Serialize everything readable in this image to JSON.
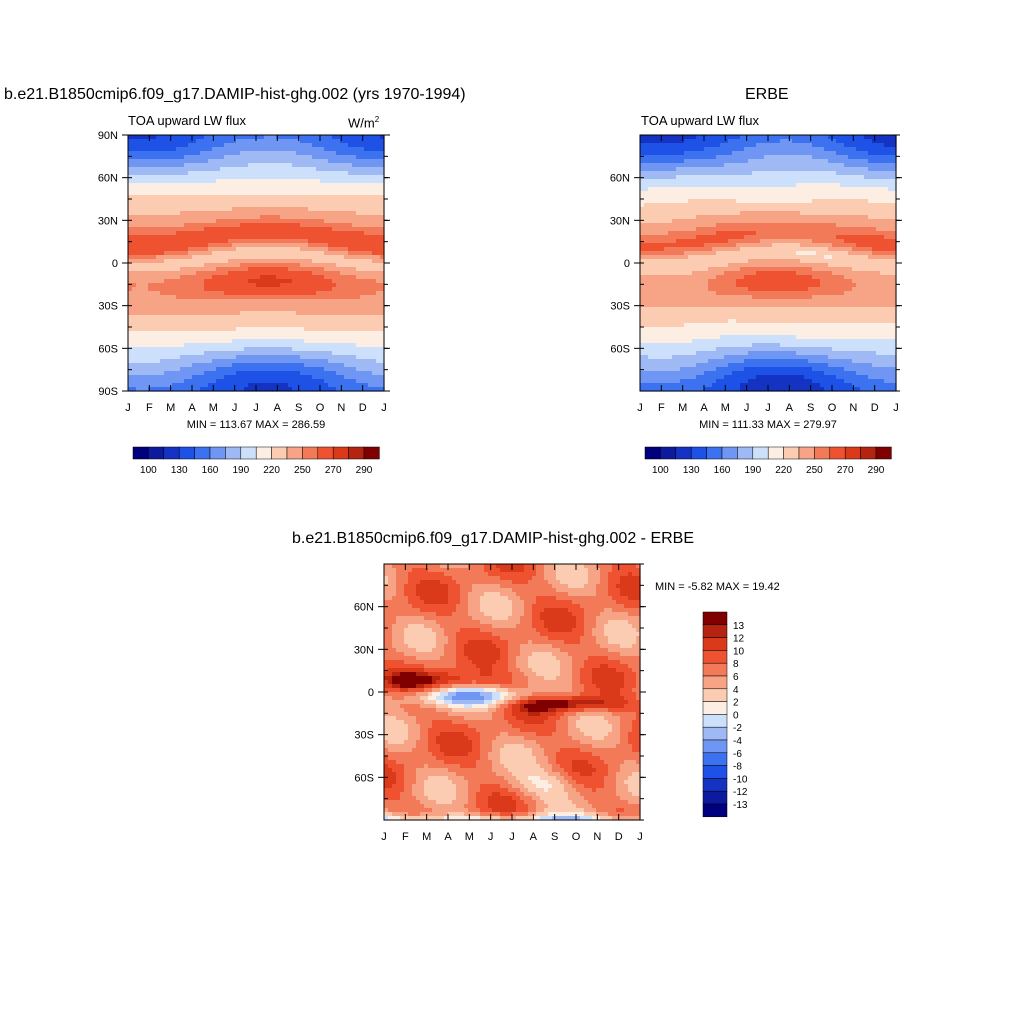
{
  "chart_data": [
    {
      "type": "heatmap",
      "title": "b.e21.B1850cmip6.f09_g17.DAMIP-hist-ghg.002 (yrs 1970-1994)",
      "subtitle": "TOA upward LW flux",
      "units": "W/m",
      "units_sup": "2",
      "x_tick_labels": [
        "J",
        "F",
        "M",
        "A",
        "M",
        "J",
        "J",
        "A",
        "S",
        "O",
        "N",
        "D",
        "J"
      ],
      "y_tick_labels": [
        "90N",
        "60N",
        "30N",
        "0",
        "30S",
        "60S",
        "90S"
      ],
      "ylim": [
        -90,
        90
      ],
      "min_max_text": "MIN = 113.67 MAX = 286.59",
      "colorbar": {
        "orientation": "horizontal",
        "labels": [
          "100",
          "130",
          "160",
          "190",
          "220",
          "250",
          "270",
          "290"
        ],
        "colors": [
          "#00007f",
          "#0c1a9e",
          "#1433c2",
          "#1e51e6",
          "#3c71f0",
          "#6f96f2",
          "#9fb9f4",
          "#cde0fb",
          "#fdeee3",
          "#fbcbb2",
          "#f7a386",
          "#f37a59",
          "#ee5230",
          "#db3a1a",
          "#b52410",
          "#800000"
        ]
      }
    },
    {
      "type": "heatmap",
      "title": "ERBE",
      "subtitle": "TOA upward LW flux",
      "x_tick_labels": [
        "J",
        "F",
        "M",
        "A",
        "M",
        "J",
        "J",
        "A",
        "S",
        "O",
        "N",
        "D",
        "J"
      ],
      "y_tick_labels": [
        "60N",
        "30N",
        "0",
        "30S",
        "60S"
      ],
      "ylim": [
        -90,
        90
      ],
      "min_max_text": "MIN = 111.33 MAX = 279.97",
      "colorbar": {
        "orientation": "horizontal",
        "labels": [
          "100",
          "130",
          "160",
          "190",
          "220",
          "250",
          "270",
          "290"
        ],
        "colors": [
          "#00007f",
          "#0c1a9e",
          "#1433c2",
          "#1e51e6",
          "#3c71f0",
          "#6f96f2",
          "#9fb9f4",
          "#cde0fb",
          "#fdeee3",
          "#fbcbb2",
          "#f7a386",
          "#f37a59",
          "#ee5230",
          "#db3a1a",
          "#b52410",
          "#800000"
        ]
      }
    },
    {
      "type": "heatmap",
      "title": "b.e21.B1850cmip6.f09_g17.DAMIP-hist-ghg.002 - ERBE",
      "x_tick_labels": [
        "J",
        "F",
        "M",
        "A",
        "M",
        "J",
        "J",
        "A",
        "S",
        "O",
        "N",
        "D",
        "J"
      ],
      "y_tick_labels": [
        "60N",
        "30N",
        "0",
        "30S",
        "60S"
      ],
      "ylim": [
        -90,
        90
      ],
      "min_max_text": "MIN =  -5.82 MAX =  19.42",
      "colorbar": {
        "orientation": "vertical",
        "labels": [
          "13",
          "12",
          "10",
          "8",
          "6",
          "4",
          "2",
          "0",
          "-2",
          "-4",
          "-6",
          "-8",
          "-10",
          "-12",
          "-13"
        ],
        "colors": [
          "#800000",
          "#b52410",
          "#db3a1a",
          "#ee5230",
          "#f37a59",
          "#f7a386",
          "#fbcbb2",
          "#fdeee3",
          "#cde0fb",
          "#9fb9f4",
          "#6f96f2",
          "#3c71f0",
          "#1e51e6",
          "#1433c2",
          "#0c1a9e",
          "#00007f"
        ]
      }
    }
  ]
}
